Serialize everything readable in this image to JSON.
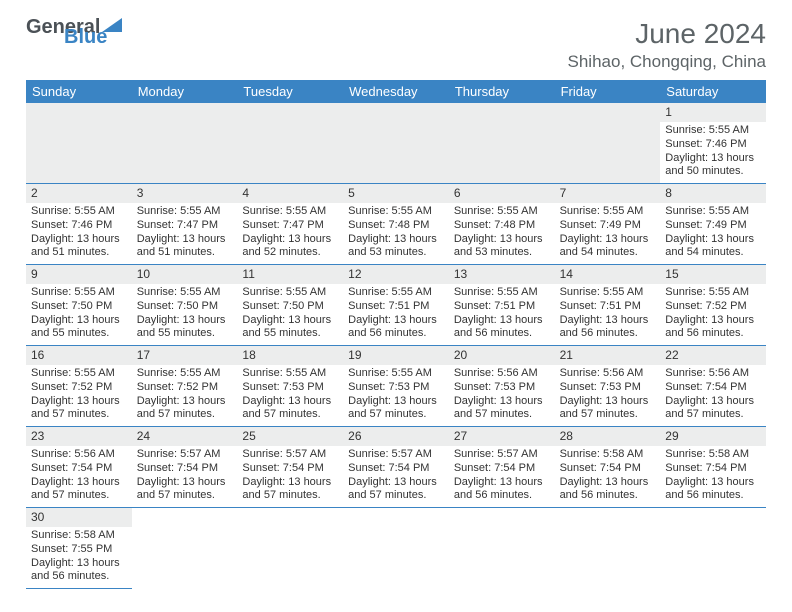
{
  "logo": {
    "word1": "General",
    "word2": "Blue"
  },
  "title": "June 2024",
  "location": "Shihao, Chongqing, China",
  "dayNames": [
    "Sunday",
    "Monday",
    "Tuesday",
    "Wednesday",
    "Thursday",
    "Friday",
    "Saturday"
  ],
  "colors": {
    "headerBg": "#3a84c4",
    "headerText": "#ffffff",
    "dayNumBg": "#eceded",
    "border": "#3a84c4",
    "titleColor": "#5d6467",
    "logoGray": "#4b5156"
  },
  "firstDayOffset": 6,
  "days": [
    {
      "n": 1,
      "sunrise": "5:55 AM",
      "sunset": "7:46 PM",
      "daylight": "13 hours and 50 minutes."
    },
    {
      "n": 2,
      "sunrise": "5:55 AM",
      "sunset": "7:46 PM",
      "daylight": "13 hours and 51 minutes."
    },
    {
      "n": 3,
      "sunrise": "5:55 AM",
      "sunset": "7:47 PM",
      "daylight": "13 hours and 51 minutes."
    },
    {
      "n": 4,
      "sunrise": "5:55 AM",
      "sunset": "7:47 PM",
      "daylight": "13 hours and 52 minutes."
    },
    {
      "n": 5,
      "sunrise": "5:55 AM",
      "sunset": "7:48 PM",
      "daylight": "13 hours and 53 minutes."
    },
    {
      "n": 6,
      "sunrise": "5:55 AM",
      "sunset": "7:48 PM",
      "daylight": "13 hours and 53 minutes."
    },
    {
      "n": 7,
      "sunrise": "5:55 AM",
      "sunset": "7:49 PM",
      "daylight": "13 hours and 54 minutes."
    },
    {
      "n": 8,
      "sunrise": "5:55 AM",
      "sunset": "7:49 PM",
      "daylight": "13 hours and 54 minutes."
    },
    {
      "n": 9,
      "sunrise": "5:55 AM",
      "sunset": "7:50 PM",
      "daylight": "13 hours and 55 minutes."
    },
    {
      "n": 10,
      "sunrise": "5:55 AM",
      "sunset": "7:50 PM",
      "daylight": "13 hours and 55 minutes."
    },
    {
      "n": 11,
      "sunrise": "5:55 AM",
      "sunset": "7:50 PM",
      "daylight": "13 hours and 55 minutes."
    },
    {
      "n": 12,
      "sunrise": "5:55 AM",
      "sunset": "7:51 PM",
      "daylight": "13 hours and 56 minutes."
    },
    {
      "n": 13,
      "sunrise": "5:55 AM",
      "sunset": "7:51 PM",
      "daylight": "13 hours and 56 minutes."
    },
    {
      "n": 14,
      "sunrise": "5:55 AM",
      "sunset": "7:51 PM",
      "daylight": "13 hours and 56 minutes."
    },
    {
      "n": 15,
      "sunrise": "5:55 AM",
      "sunset": "7:52 PM",
      "daylight": "13 hours and 56 minutes."
    },
    {
      "n": 16,
      "sunrise": "5:55 AM",
      "sunset": "7:52 PM",
      "daylight": "13 hours and 57 minutes."
    },
    {
      "n": 17,
      "sunrise": "5:55 AM",
      "sunset": "7:52 PM",
      "daylight": "13 hours and 57 minutes."
    },
    {
      "n": 18,
      "sunrise": "5:55 AM",
      "sunset": "7:53 PM",
      "daylight": "13 hours and 57 minutes."
    },
    {
      "n": 19,
      "sunrise": "5:55 AM",
      "sunset": "7:53 PM",
      "daylight": "13 hours and 57 minutes."
    },
    {
      "n": 20,
      "sunrise": "5:56 AM",
      "sunset": "7:53 PM",
      "daylight": "13 hours and 57 minutes."
    },
    {
      "n": 21,
      "sunrise": "5:56 AM",
      "sunset": "7:53 PM",
      "daylight": "13 hours and 57 minutes."
    },
    {
      "n": 22,
      "sunrise": "5:56 AM",
      "sunset": "7:54 PM",
      "daylight": "13 hours and 57 minutes."
    },
    {
      "n": 23,
      "sunrise": "5:56 AM",
      "sunset": "7:54 PM",
      "daylight": "13 hours and 57 minutes."
    },
    {
      "n": 24,
      "sunrise": "5:57 AM",
      "sunset": "7:54 PM",
      "daylight": "13 hours and 57 minutes."
    },
    {
      "n": 25,
      "sunrise": "5:57 AM",
      "sunset": "7:54 PM",
      "daylight": "13 hours and 57 minutes."
    },
    {
      "n": 26,
      "sunrise": "5:57 AM",
      "sunset": "7:54 PM",
      "daylight": "13 hours and 57 minutes."
    },
    {
      "n": 27,
      "sunrise": "5:57 AM",
      "sunset": "7:54 PM",
      "daylight": "13 hours and 56 minutes."
    },
    {
      "n": 28,
      "sunrise": "5:58 AM",
      "sunset": "7:54 PM",
      "daylight": "13 hours and 56 minutes."
    },
    {
      "n": 29,
      "sunrise": "5:58 AM",
      "sunset": "7:54 PM",
      "daylight": "13 hours and 56 minutes."
    },
    {
      "n": 30,
      "sunrise": "5:58 AM",
      "sunset": "7:55 PM",
      "daylight": "13 hours and 56 minutes."
    }
  ],
  "labels": {
    "sunrise": "Sunrise:",
    "sunset": "Sunset:",
    "daylight": "Daylight:"
  }
}
